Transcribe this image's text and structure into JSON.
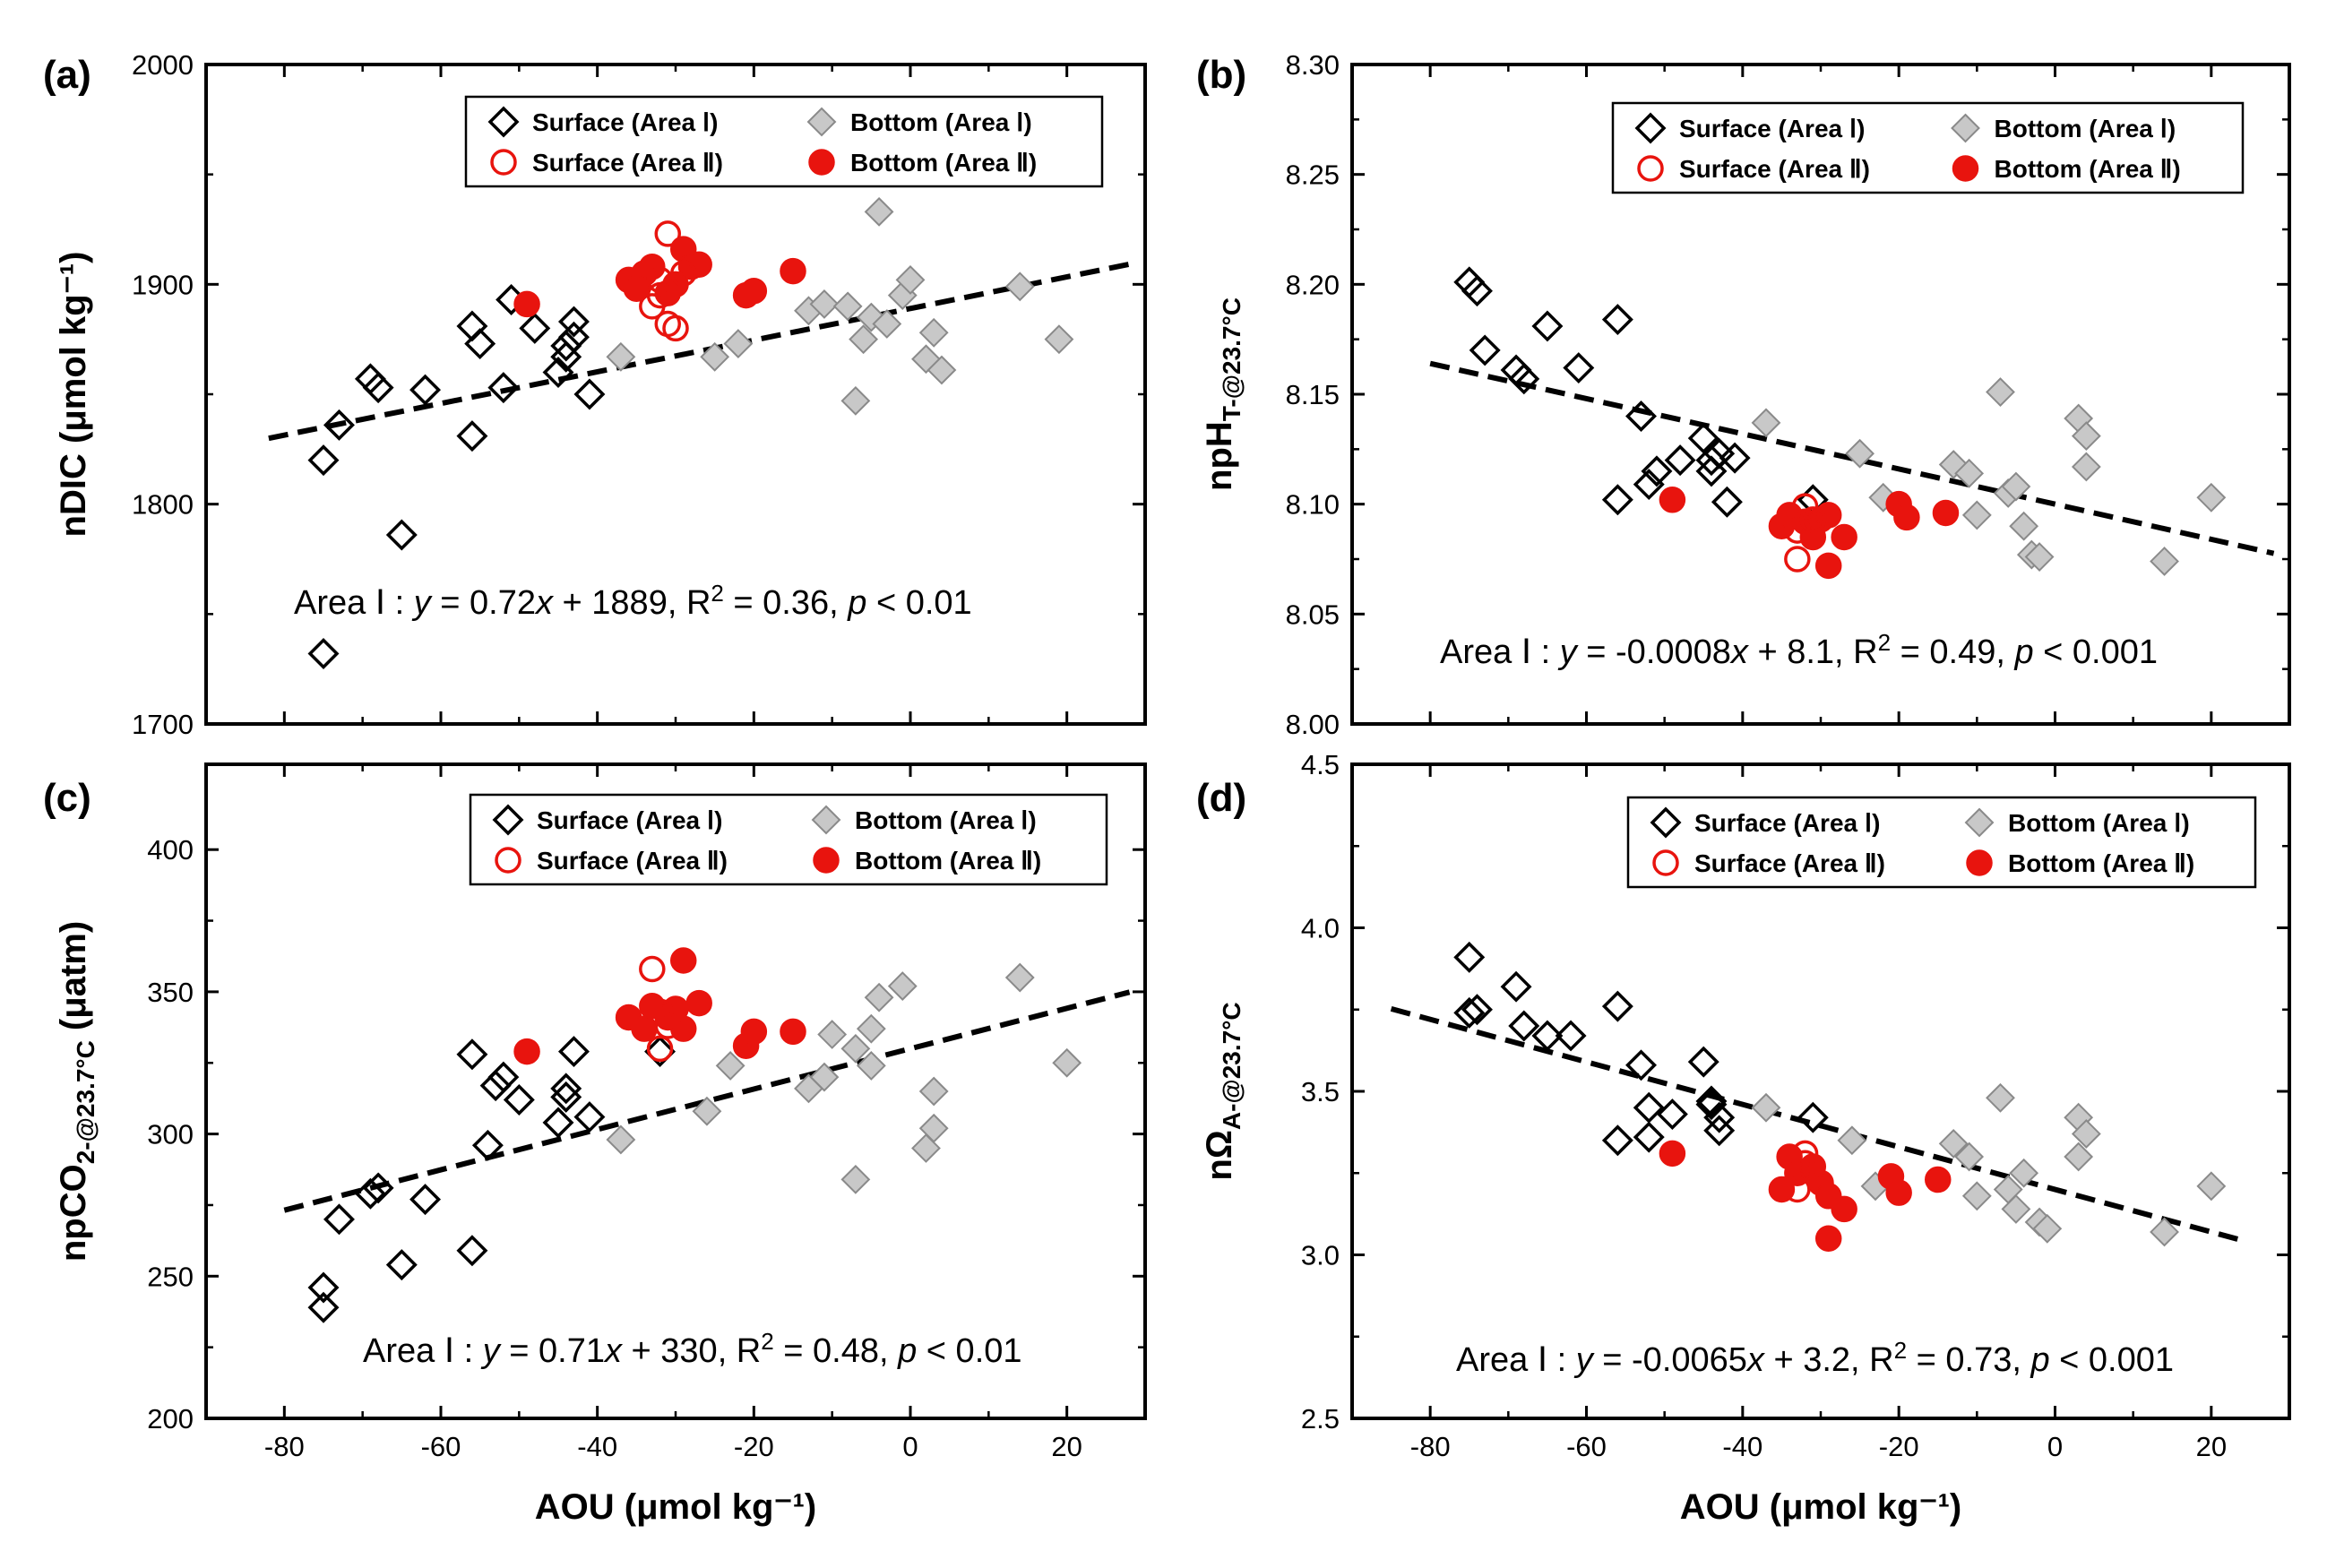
{
  "figure": {
    "legend": {
      "surface_1": "Surface (Area Ⅰ)",
      "bottom_1": "Bottom (Area Ⅰ)",
      "surface_2": "Surface (Area Ⅱ)",
      "bottom_2": "Bottom (Area Ⅱ)"
    },
    "colors": {
      "red": "#e8140e",
      "gray": "#c8c8c8",
      "black": "#000000"
    }
  },
  "chart_data": [
    {
      "type": "scatter",
      "panel": "(a)",
      "ylabel": "nDIC (μmol kg⁻¹)",
      "xlabel": "",
      "xlim": [
        -90,
        30
      ],
      "ylim": [
        1700,
        2000
      ],
      "xticks": [
        -80,
        -60,
        -40,
        -20,
        0,
        20
      ],
      "xtick_labels": [
        "",
        "",
        "",
        "",
        "",
        ""
      ],
      "yticks": [
        1700,
        1800,
        1900,
        2000
      ],
      "ytick_labels": [
        "1700",
        "1800",
        "1900",
        "2000"
      ],
      "fit": {
        "slope": 0.72,
        "intercept": 1889,
        "x0": -82,
        "x1": 29
      },
      "annotation": "Area Ⅰ : y = 0.72x + 1889, R² = 0.36, p < 0.01",
      "series": [
        {
          "name": "Surface (Area Ⅰ)",
          "marker": "diamond-open",
          "points": [
            [
              -75,
              1820
            ],
            [
              -73,
              1836
            ],
            [
              -69,
              1857
            ],
            [
              -68,
              1853
            ],
            [
              -62,
              1852
            ],
            [
              -65,
              1786
            ],
            [
              -75,
              1732
            ],
            [
              -56,
              1881
            ],
            [
              -55,
              1873
            ],
            [
              -51,
              1893
            ],
            [
              -52,
              1853
            ],
            [
              -56,
              1831
            ],
            [
              -48,
              1880
            ],
            [
              -45,
              1860
            ],
            [
              -44,
              1872
            ],
            [
              -44,
              1867
            ],
            [
              -43,
              1883
            ],
            [
              -43,
              1876
            ],
            [
              -41,
              1850
            ]
          ]
        },
        {
          "name": "Bottom (Area Ⅰ)",
          "marker": "diamond-filled",
          "points": [
            [
              -37,
              1867
            ],
            [
              -25,
              1867
            ],
            [
              -22,
              1873
            ],
            [
              -13,
              1888
            ],
            [
              -11,
              1891
            ],
            [
              -8,
              1890
            ],
            [
              -6,
              1875
            ],
            [
              -5,
              1885
            ],
            [
              -4,
              1933
            ],
            [
              -3,
              1882
            ],
            [
              -1,
              1895
            ],
            [
              0,
              1902
            ],
            [
              2,
              1866
            ],
            [
              3,
              1878
            ],
            [
              4,
              1861
            ],
            [
              -7,
              1847
            ],
            [
              14,
              1899
            ],
            [
              19,
              1875
            ]
          ]
        },
        {
          "name": "Surface (Area Ⅱ)",
          "marker": "circle-open",
          "points": [
            [
              -33,
              1890
            ],
            [
              -32,
              1902
            ],
            [
              -31,
              1923
            ],
            [
              -31,
              1882
            ],
            [
              -30,
              1880
            ],
            [
              -32,
              1895
            ],
            [
              -29,
              1905
            ]
          ]
        },
        {
          "name": "Bottom (Area Ⅱ)",
          "marker": "circle-filled",
          "points": [
            [
              -49,
              1891
            ],
            [
              -36,
              1902
            ],
            [
              -34,
              1905
            ],
            [
              -33,
              1908
            ],
            [
              -29,
              1916
            ],
            [
              -28,
              1908
            ],
            [
              -30,
              1900
            ],
            [
              -27,
              1909
            ],
            [
              -21,
              1895
            ],
            [
              -20,
              1897
            ],
            [
              -15,
              1906
            ],
            [
              -31,
              1896
            ],
            [
              -35,
              1898
            ]
          ]
        }
      ]
    },
    {
      "type": "scatter",
      "panel": "(b)",
      "ylabel": "npH_T-@23.7°C",
      "xlabel": "",
      "xlim": [
        -90,
        30
      ],
      "ylim": [
        8.0,
        8.3
      ],
      "xticks": [
        -80,
        -60,
        -40,
        -20,
        0,
        20
      ],
      "xtick_labels": [
        "",
        "",
        "",
        "",
        "",
        ""
      ],
      "yticks": [
        8.0,
        8.05,
        8.1,
        8.15,
        8.2,
        8.25,
        8.3
      ],
      "ytick_labels": [
        "8.00",
        "8.05",
        "8.10",
        "8.15",
        "8.20",
        "8.25",
        "8.30"
      ],
      "fit": {
        "slope": -0.0008,
        "intercept": 8.1,
        "x0": -80,
        "x1": 28
      },
      "annotation": "Area Ⅰ : y = -0.0008x + 8.1, R² = 0.49, p < 0.001",
      "series": [
        {
          "name": "Surface (Area Ⅰ)",
          "marker": "diamond-open",
          "points": [
            [
              -75,
              8.201
            ],
            [
              -74,
              8.197
            ],
            [
              -73,
              8.17
            ],
            [
              -69,
              8.161
            ],
            [
              -68,
              8.157
            ],
            [
              -65,
              8.181
            ],
            [
              -61,
              8.162
            ],
            [
              -56,
              8.184
            ],
            [
              -56,
              8.102
            ],
            [
              -53,
              8.14
            ],
            [
              -52,
              8.109
            ],
            [
              -51,
              8.115
            ],
            [
              -48,
              8.12
            ],
            [
              -45,
              8.13
            ],
            [
              -44,
              8.12
            ],
            [
              -44,
              8.115
            ],
            [
              -43,
              8.123
            ],
            [
              -42,
              8.101
            ],
            [
              -41,
              8.121
            ],
            [
              -31,
              8.102
            ]
          ]
        },
        {
          "name": "Bottom (Area Ⅰ)",
          "marker": "diamond-filled",
          "points": [
            [
              -37,
              8.137
            ],
            [
              -25,
              8.123
            ],
            [
              -22,
              8.103
            ],
            [
              -13,
              8.118
            ],
            [
              -11,
              8.114
            ],
            [
              -10,
              8.095
            ],
            [
              -7,
              8.151
            ],
            [
              -6,
              8.105
            ],
            [
              -5,
              8.108
            ],
            [
              -4,
              8.09
            ],
            [
              -3,
              8.077
            ],
            [
              -2,
              8.076
            ],
            [
              3,
              8.139
            ],
            [
              4,
              8.131
            ],
            [
              4,
              8.117
            ],
            [
              14,
              8.074
            ],
            [
              20,
              8.103
            ]
          ]
        },
        {
          "name": "Surface (Area Ⅱ)",
          "marker": "circle-open",
          "points": [
            [
              -33,
              8.075
            ],
            [
              -32,
              8.099
            ],
            [
              -31,
              8.093
            ],
            [
              -33,
              8.088
            ]
          ]
        },
        {
          "name": "Bottom (Area Ⅱ)",
          "marker": "circle-filled",
          "points": [
            [
              -49,
              8.102
            ],
            [
              -35,
              8.09
            ],
            [
              -34,
              8.095
            ],
            [
              -32,
              8.092
            ],
            [
              -31,
              8.085
            ],
            [
              -30,
              8.093
            ],
            [
              -29,
              8.095
            ],
            [
              -29,
              8.072
            ],
            [
              -27,
              8.085
            ],
            [
              -20,
              8.1
            ],
            [
              -19,
              8.094
            ],
            [
              -14,
              8.096
            ]
          ]
        }
      ]
    },
    {
      "type": "scatter",
      "panel": "(c)",
      "ylabel": "npCO₂-@23.7°C (μatm)",
      "xlabel": "AOU (μmol kg⁻¹)",
      "xlim": [
        -90,
        30
      ],
      "ylim": [
        200,
        430
      ],
      "xticks": [
        -80,
        -60,
        -40,
        -20,
        0,
        20
      ],
      "xtick_labels": [
        "-80",
        "-60",
        "-40",
        "-20",
        "0",
        "20"
      ],
      "yticks": [
        200,
        250,
        300,
        350,
        400
      ],
      "ytick_labels": [
        "200",
        "250",
        "300",
        "350",
        "400"
      ],
      "fit": {
        "slope": 0.71,
        "intercept": 330,
        "x0": -80,
        "x1": 28
      },
      "annotation": "Area Ⅰ : y = 0.71x + 330, R² = 0.48, p < 0.01",
      "series": [
        {
          "name": "Surface (Area Ⅰ)",
          "marker": "diamond-open",
          "points": [
            [
              -75,
              246
            ],
            [
              -75,
              239
            ],
            [
              -73,
              270
            ],
            [
              -69,
              279
            ],
            [
              -68,
              281
            ],
            [
              -65,
              254
            ],
            [
              -62,
              277
            ],
            [
              -56,
              259
            ],
            [
              -56,
              328
            ],
            [
              -54,
              296
            ],
            [
              -53,
              317
            ],
            [
              -52,
              320
            ],
            [
              -50,
              312
            ],
            [
              -45,
              304
            ],
            [
              -44,
              316
            ],
            [
              -44,
              313
            ],
            [
              -43,
              329
            ],
            [
              -41,
              306
            ],
            [
              -32,
              329
            ]
          ]
        },
        {
          "name": "Bottom (Area Ⅰ)",
          "marker": "diamond-filled",
          "points": [
            [
              -37,
              298
            ],
            [
              -26,
              308
            ],
            [
              -23,
              324
            ],
            [
              -13,
              316
            ],
            [
              -11,
              320
            ],
            [
              -10,
              335
            ],
            [
              -7,
              330
            ],
            [
              -7,
              284
            ],
            [
              -5,
              324
            ],
            [
              -5,
              337
            ],
            [
              -4,
              348
            ],
            [
              -1,
              352
            ],
            [
              2,
              295
            ],
            [
              3,
              302
            ],
            [
              3,
              315
            ],
            [
              14,
              355
            ],
            [
              20,
              325
            ]
          ]
        },
        {
          "name": "Surface (Area Ⅱ)",
          "marker": "circle-open",
          "points": [
            [
              -33,
              358
            ],
            [
              -32,
              330
            ],
            [
              -32,
              343
            ],
            [
              -31,
              338
            ]
          ]
        },
        {
          "name": "Bottom (Area Ⅱ)",
          "marker": "circle-filled",
          "points": [
            [
              -49,
              329
            ],
            [
              -36,
              341
            ],
            [
              -34,
              337
            ],
            [
              -33,
              345
            ],
            [
              -30,
              344
            ],
            [
              -29,
              361
            ],
            [
              -29,
              337
            ],
            [
              -27,
              346
            ],
            [
              -21,
              331
            ],
            [
              -20,
              336
            ],
            [
              -15,
              336
            ],
            [
              -31,
              341
            ]
          ]
        }
      ]
    },
    {
      "type": "scatter",
      "panel": "(d)",
      "ylabel": "nΩ_A-@23.7°C",
      "xlabel": "AOU (μmol kg⁻¹)",
      "xlim": [
        -90,
        30
      ],
      "ylim": [
        2.5,
        4.5
      ],
      "xticks": [
        -80,
        -60,
        -40,
        -20,
        0,
        20
      ],
      "xtick_labels": [
        "-80",
        "-60",
        "-40",
        "-20",
        "0",
        "20"
      ],
      "yticks": [
        2.5,
        3.0,
        3.5,
        4.0,
        4.5
      ],
      "ytick_labels": [
        "2.5",
        "3.0",
        "3.5",
        "4.0",
        "4.5"
      ],
      "fit": {
        "slope": -0.0065,
        "intercept": 3.2,
        "x0": -85,
        "x1": 24
      },
      "annotation": "Area Ⅰ : y = -0.0065x + 3.2, R² = 0.73, p < 0.001",
      "series": [
        {
          "name": "Surface (Area Ⅰ)",
          "marker": "diamond-open",
          "points": [
            [
              -75,
              3.91
            ],
            [
              -75,
              3.74
            ],
            [
              -74,
              3.75
            ],
            [
              -69,
              3.82
            ],
            [
              -68,
              3.7
            ],
            [
              -65,
              3.67
            ],
            [
              -62,
              3.67
            ],
            [
              -56,
              3.76
            ],
            [
              -56,
              3.35
            ],
            [
              -53,
              3.58
            ],
            [
              -52,
              3.45
            ],
            [
              -52,
              3.36
            ],
            [
              -49,
              3.43
            ],
            [
              -45,
              3.59
            ],
            [
              -44,
              3.47
            ],
            [
              -44,
              3.46
            ],
            [
              -43,
              3.42
            ],
            [
              -43,
              3.38
            ],
            [
              -31,
              3.42
            ]
          ]
        },
        {
          "name": "Bottom (Area Ⅰ)",
          "marker": "diamond-filled",
          "points": [
            [
              -37,
              3.45
            ],
            [
              -26,
              3.35
            ],
            [
              -23,
              3.21
            ],
            [
              -13,
              3.34
            ],
            [
              -11,
              3.3
            ],
            [
              -10,
              3.18
            ],
            [
              -7,
              3.48
            ],
            [
              -6,
              3.2
            ],
            [
              -5,
              3.14
            ],
            [
              -4,
              3.25
            ],
            [
              -2,
              3.1
            ],
            [
              -1,
              3.08
            ],
            [
              3,
              3.42
            ],
            [
              3,
              3.3
            ],
            [
              4,
              3.37
            ],
            [
              14,
              3.07
            ],
            [
              20,
              3.21
            ]
          ]
        },
        {
          "name": "Surface (Area Ⅱ)",
          "marker": "circle-open",
          "points": [
            [
              -33,
              3.2
            ],
            [
              -32,
              3.31
            ],
            [
              -32,
              3.28
            ]
          ]
        },
        {
          "name": "Bottom (Area Ⅱ)",
          "marker": "circle-filled",
          "points": [
            [
              -49,
              3.31
            ],
            [
              -35,
              3.2
            ],
            [
              -34,
              3.3
            ],
            [
              -33,
              3.25
            ],
            [
              -30,
              3.22
            ],
            [
              -29,
              3.18
            ],
            [
              -29,
              3.05
            ],
            [
              -27,
              3.14
            ],
            [
              -21,
              3.24
            ],
            [
              -20,
              3.19
            ],
            [
              -15,
              3.23
            ],
            [
              -31,
              3.27
            ]
          ]
        }
      ]
    }
  ]
}
